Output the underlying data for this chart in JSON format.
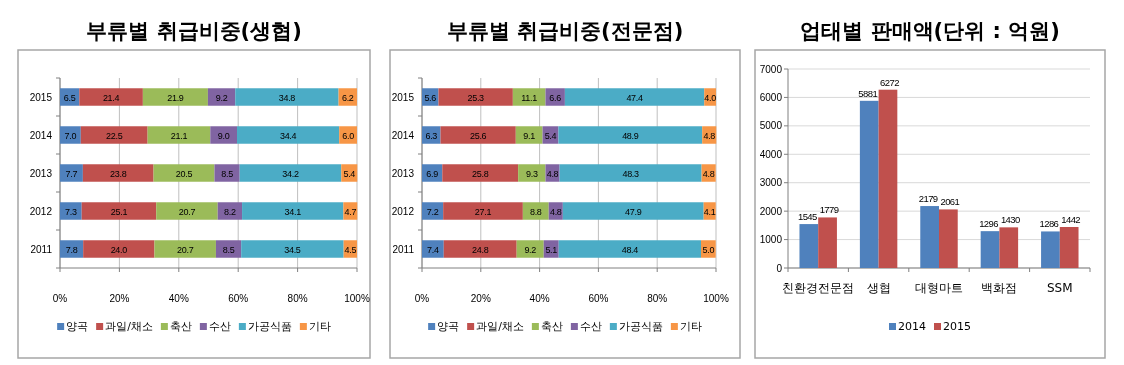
{
  "chart_data": [
    {
      "type": "bar",
      "title": "부류별 취급비중(생협)",
      "orientation": "horizontal",
      "stacked": true,
      "categories": [
        "2015",
        "2014",
        "2013",
        "2012",
        "2011"
      ],
      "series": [
        {
          "name": "양곡",
          "color": "#4f81bd",
          "values": [
            6.5,
            7.0,
            7.7,
            7.3,
            7.8
          ],
          "value_labels": [
            "6.5",
            "7.0",
            "7.7",
            "7.3",
            "7.8"
          ]
        },
        {
          "name": "과일/채소",
          "color": "#c0504d",
          "values": [
            21.4,
            22.5,
            23.8,
            25.1,
            24.0
          ],
          "value_labels": [
            "21.4",
            "22.5",
            "23.8",
            "25.1",
            "24.0"
          ]
        },
        {
          "name": "축산",
          "color": "#9bbb59",
          "values": [
            21.9,
            21.1,
            20.5,
            20.7,
            20.7
          ],
          "value_labels": [
            "21.9",
            "21.1",
            "20.5",
            "20.7",
            "20.7"
          ]
        },
        {
          "name": "수산",
          "color": "#8064a2",
          "values": [
            9.2,
            9.0,
            8.5,
            8.2,
            8.5
          ],
          "value_labels": [
            "9.2",
            "9.0",
            "8.5",
            "8.2",
            "8.5"
          ]
        },
        {
          "name": "가공식품",
          "color": "#4bacc6",
          "values": [
            34.8,
            34.4,
            34.2,
            34.1,
            34.5
          ],
          "value_labels": [
            "34.8",
            "34.4",
            "34.2",
            "34.1",
            "34.5"
          ]
        },
        {
          "name": "기타",
          "color": "#f79646",
          "values": [
            6.2,
            6.0,
            5.4,
            4.7,
            4.5
          ],
          "value_labels": [
            "6.2",
            "6.0",
            "5.4",
            "4.7",
            "4.5"
          ]
        }
      ],
      "xlim": [
        0,
        100
      ],
      "xticks": [
        {
          "value": 0,
          "label": "0%"
        },
        {
          "value": 20,
          "label": "20%"
        },
        {
          "value": 40,
          "label": "40%"
        },
        {
          "value": 60,
          "label": "60%"
        },
        {
          "value": 80,
          "label": "80%"
        },
        {
          "value": 100,
          "label": "100%"
        }
      ],
      "grid": "x",
      "legend": "bottom"
    },
    {
      "type": "bar",
      "title": "부류별 취급비중(전문점)",
      "orientation": "horizontal",
      "stacked": true,
      "categories": [
        "2015",
        "2014",
        "2013",
        "2012",
        "2011"
      ],
      "series": [
        {
          "name": "양곡",
          "color": "#4f81bd",
          "values": [
            5.6,
            6.3,
            6.9,
            7.2,
            7.4
          ],
          "value_labels": [
            "5.6",
            "6.3",
            "6.9",
            "7.2",
            "7.4"
          ]
        },
        {
          "name": "과일/채소",
          "color": "#c0504d",
          "values": [
            25.3,
            25.6,
            25.8,
            27.1,
            24.8
          ],
          "value_labels": [
            "25.3",
            "25.6",
            "25.8",
            "27.1",
            "24.8"
          ]
        },
        {
          "name": "축산",
          "color": "#9bbb59",
          "values": [
            11.1,
            9.1,
            9.3,
            8.8,
            9.2
          ],
          "value_labels": [
            "11.1",
            "9.1",
            "9.3",
            "8.8",
            "9.2"
          ]
        },
        {
          "name": "수산",
          "color": "#8064a2",
          "values": [
            6.6,
            5.4,
            4.8,
            4.8,
            5.1
          ],
          "value_labels": [
            "6.6",
            "5.4",
            "4.8",
            "4.8",
            "5.1"
          ]
        },
        {
          "name": "가공식품",
          "color": "#4bacc6",
          "values": [
            47.4,
            48.9,
            48.3,
            47.9,
            48.4
          ],
          "value_labels": [
            "47.4",
            "48.9",
            "48.3",
            "47.9",
            "48.4"
          ]
        },
        {
          "name": "기타",
          "color": "#f79646",
          "values": [
            4.0,
            4.8,
            4.8,
            4.1,
            5.0
          ],
          "value_labels": [
            "4.0",
            "4.8",
            "4.8",
            "4.1",
            "5.0"
          ]
        }
      ],
      "xlim": [
        0,
        100
      ],
      "xticks": [
        {
          "value": 0,
          "label": "0%"
        },
        {
          "value": 20,
          "label": "20%"
        },
        {
          "value": 40,
          "label": "40%"
        },
        {
          "value": 60,
          "label": "60%"
        },
        {
          "value": 80,
          "label": "80%"
        },
        {
          "value": 100,
          "label": "100%"
        }
      ],
      "grid": "x",
      "legend": "bottom"
    },
    {
      "type": "bar",
      "title": "업태별 판매액(단위 : 억원)",
      "categories": [
        "친환경전문점",
        "생협",
        "대형마트",
        "백화점",
        "SSM"
      ],
      "series": [
        {
          "name": "2014",
          "color": "#4f81bd",
          "values": [
            1545,
            5881,
            2179,
            1296,
            1286
          ]
        },
        {
          "name": "2015",
          "color": "#c0504d",
          "values": [
            1779,
            6272,
            2061,
            1430,
            1442
          ]
        }
      ],
      "ylim": [
        0,
        7000
      ],
      "yticks": [
        0,
        1000,
        2000,
        3000,
        4000,
        5000,
        6000,
        7000
      ],
      "grid": "y",
      "legend": "bottom",
      "data_labels": true
    }
  ]
}
